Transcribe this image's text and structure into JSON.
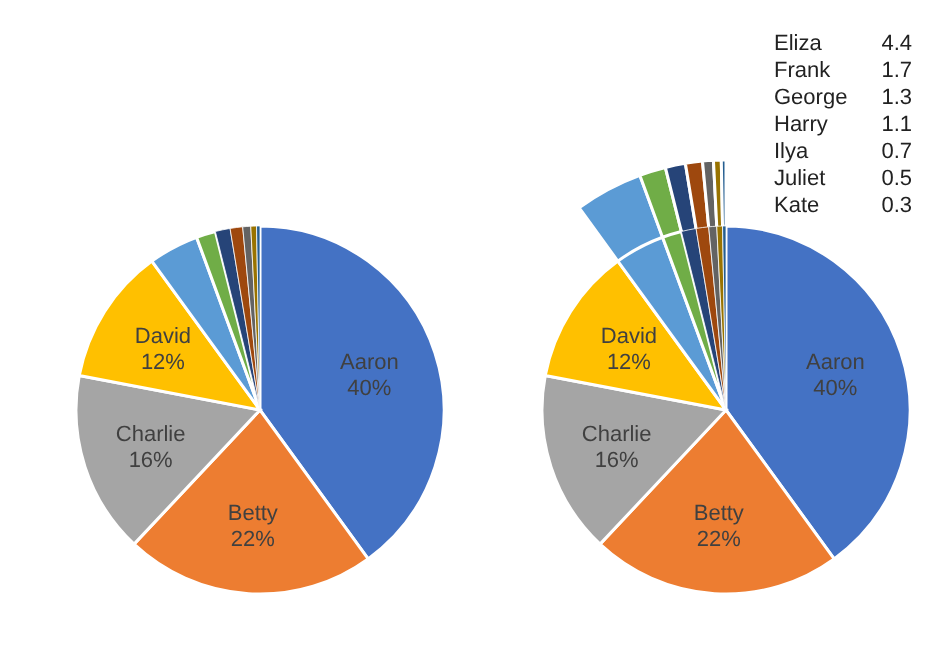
{
  "chart_data": [
    {
      "type": "pie",
      "categories": [
        "Aaron",
        "Betty",
        "Charlie",
        "David",
        null,
        null,
        null,
        null,
        null,
        null,
        null
      ],
      "values": [
        40,
        22,
        16,
        12,
        4.4,
        1.7,
        1.3,
        1.1,
        0.7,
        0.5,
        0.3
      ],
      "colors": [
        "#4472c4",
        "#ed7d31",
        "#a5a5a5",
        "#ffc000",
        "#5b9bd5",
        "#70ad47",
        "#264478",
        "#9e480e",
        "#636363",
        "#997300",
        "#255e91"
      ],
      "value_labels": [
        "40%",
        "22%",
        "16%",
        "12%",
        null,
        null,
        null,
        null,
        null,
        null,
        null
      ]
    },
    {
      "type": "pie",
      "categories": [
        "Aaron",
        "Betty",
        "Charlie",
        "David",
        null,
        null,
        null,
        null,
        null,
        null,
        null
      ],
      "values": [
        40,
        22,
        16,
        12,
        4.4,
        1.7,
        1.3,
        1.1,
        0.7,
        0.5,
        0.3
      ],
      "colors": [
        "#4472c4",
        "#ed7d31",
        "#a5a5a5",
        "#ffc000",
        "#5b9bd5",
        "#70ad47",
        "#264478",
        "#9e480e",
        "#636363",
        "#997300",
        "#255e91"
      ],
      "value_labels": [
        "40%",
        "22%",
        "16%",
        "12%",
        null,
        null,
        null,
        null,
        null,
        null,
        null
      ],
      "annotations": [
        "Eliza",
        "4.4",
        "Frank",
        "1.7",
        "George",
        "1.3",
        "Harry",
        "1.1",
        "Ilya",
        "0.7",
        "Juliet",
        "0.5",
        "Kate",
        "0.3"
      ]
    }
  ]
}
